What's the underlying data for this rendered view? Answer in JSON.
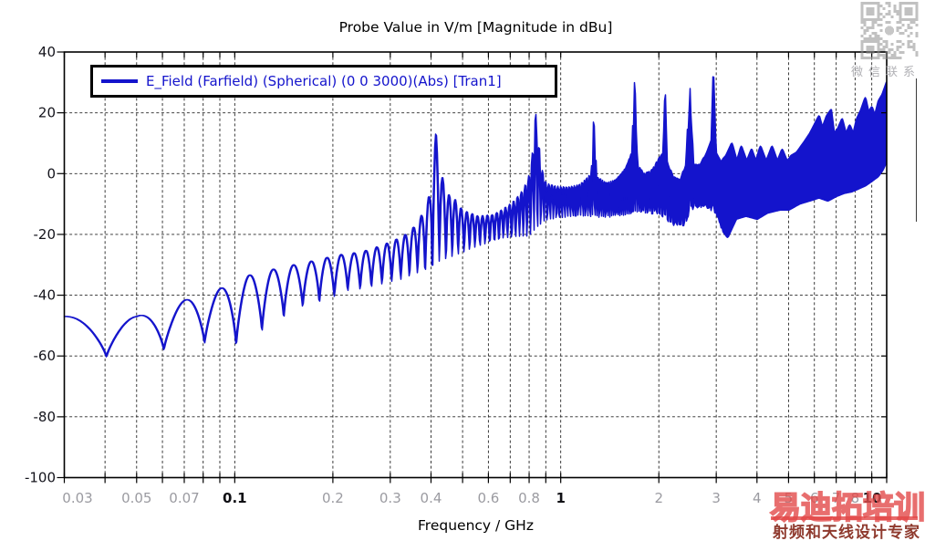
{
  "qr": {
    "caption": "微信联系"
  },
  "watermark": {
    "brand": "易迪拓培训",
    "tagline": "射频和天线设计专家",
    "brand_color": "#e24646",
    "tagline_color": "#8f3a2e"
  },
  "chart_data": {
    "type": "line",
    "title": "Probe Value in V/m [Magnitude in dBu]",
    "xlabel": "Frequency / GHz",
    "ylabel": "",
    "grid": "dashed",
    "legend_position": "top-left-inside",
    "x_axis": {
      "scale": "log",
      "min": 0.03,
      "max": 10,
      "ticks": [
        0.03,
        0.04,
        0.05,
        0.06,
        0.07,
        0.08,
        0.09,
        0.1,
        0.2,
        0.3,
        0.4,
        0.5,
        0.6,
        0.7,
        0.8,
        0.9,
        1,
        2,
        3,
        4,
        5,
        6,
        7,
        8,
        9,
        10
      ],
      "gridlines": [
        0.04,
        0.05,
        0.06,
        0.07,
        0.08,
        0.09,
        0.1,
        0.2,
        0.3,
        0.4,
        0.5,
        0.6,
        0.7,
        0.8,
        0.9,
        1,
        2,
        3,
        4,
        5,
        6,
        7,
        8,
        9
      ],
      "tick_labels": [
        {
          "f": 0.03,
          "label": "0.03",
          "strong": false
        },
        {
          "f": 0.05,
          "label": "0.05",
          "strong": false
        },
        {
          "f": 0.07,
          "label": "0.07",
          "strong": false
        },
        {
          "f": 0.1,
          "label": "0.1",
          "strong": true
        },
        {
          "f": 0.2,
          "label": "0.2",
          "strong": false
        },
        {
          "f": 0.3,
          "label": "0.3",
          "strong": false
        },
        {
          "f": 0.4,
          "label": "0.4",
          "strong": false
        },
        {
          "f": 0.6,
          "label": "0.6",
          "strong": false
        },
        {
          "f": 0.8,
          "label": "0.8",
          "strong": false
        },
        {
          "f": 1,
          "label": "1",
          "strong": true
        },
        {
          "f": 2,
          "label": "2",
          "strong": false
        },
        {
          "f": 3,
          "label": "3",
          "strong": false
        },
        {
          "f": 4,
          "label": "4",
          "strong": false
        },
        {
          "f": 5,
          "label": "5",
          "strong": false
        },
        {
          "f": 6,
          "label": "6",
          "strong": false
        },
        {
          "f": 7,
          "label": "7",
          "strong": false
        },
        {
          "f": 8,
          "label": "8",
          "strong": false
        },
        {
          "f": 10,
          "label": "10",
          "strong": true
        }
      ]
    },
    "y_axis": {
      "min": -100,
      "max": 40,
      "step": 20,
      "gridlines": [
        20,
        0,
        -20,
        -40,
        -60,
        -80
      ],
      "tick_labels": [
        {
          "v": 40,
          "label": "40"
        },
        {
          "v": 20,
          "label": "20"
        },
        {
          "v": 0,
          "label": "0"
        },
        {
          "v": -20,
          "label": "-20"
        },
        {
          "v": -40,
          "label": "-40"
        },
        {
          "v": -60,
          "label": "-60"
        },
        {
          "v": -80,
          "label": "-80"
        },
        {
          "v": -100,
          "label": "-100"
        }
      ]
    },
    "series": [
      {
        "name": "E_Field (Farfield) (Spherical) (0 0 3000)(Abs) [Tran1]",
        "color": "#1414cc",
        "interference_null_spacing_ghz": 0.0202,
        "envelope_upper": [
          [
            0.03,
            -47
          ],
          [
            0.05,
            -47
          ],
          [
            0.071,
            -41.5
          ],
          [
            0.095,
            -37
          ],
          [
            0.11,
            -33.5
          ],
          [
            0.131,
            -31.5
          ],
          [
            0.152,
            -30
          ],
          [
            0.172,
            -28.8
          ],
          [
            0.194,
            -27.5
          ],
          [
            0.215,
            -26.5
          ],
          [
            0.236,
            -26
          ],
          [
            0.26,
            -25
          ],
          [
            0.3,
            -22.5
          ],
          [
            0.33,
            -20.5
          ],
          [
            0.355,
            -17.5
          ],
          [
            0.378,
            -13
          ],
          [
            0.396,
            -7
          ],
          [
            0.414,
            13
          ],
          [
            0.428,
            1
          ],
          [
            0.447,
            -6.5
          ],
          [
            0.47,
            -8
          ],
          [
            0.5,
            -12
          ],
          [
            0.56,
            -14
          ],
          [
            0.62,
            -13.5
          ],
          [
            0.67,
            -11.5
          ],
          [
            0.72,
            -9
          ],
          [
            0.77,
            -5
          ],
          [
            0.81,
            1
          ],
          [
            0.8383,
            19.5
          ],
          [
            0.868,
            3
          ],
          [
            0.9,
            -3
          ],
          [
            0.95,
            -4
          ],
          [
            1.05,
            -4.5
          ],
          [
            1.15,
            -3.5
          ],
          [
            1.24,
            0
          ],
          [
            1.2625,
            17
          ],
          [
            1.29,
            -1
          ],
          [
            1.38,
            -3
          ],
          [
            1.48,
            -2
          ],
          [
            1.58,
            2
          ],
          [
            1.655,
            7
          ],
          [
            1.6867,
            30
          ],
          [
            1.72,
            3
          ],
          [
            1.8,
            0
          ],
          [
            1.9,
            1
          ],
          [
            2.0,
            5
          ],
          [
            2.06,
            7
          ],
          [
            2.0907,
            26
          ],
          [
            2.13,
            3
          ],
          [
            2.22,
            -1
          ],
          [
            2.32,
            -2
          ],
          [
            2.42,
            3
          ],
          [
            2.4947,
            28
          ],
          [
            2.55,
            3
          ],
          [
            2.68,
            3
          ],
          [
            2.8,
            7
          ],
          [
            2.9,
            11
          ],
          [
            2.9391,
            32
          ],
          [
            2.99,
            7
          ],
          [
            3.1,
            4
          ],
          [
            3.22,
            6
          ],
          [
            3.35,
            10
          ],
          [
            3.47,
            4
          ],
          [
            3.58,
            9
          ],
          [
            3.72,
            4
          ],
          [
            3.85,
            8
          ],
          [
            3.97,
            4
          ],
          [
            4.1,
            9
          ],
          [
            4.27,
            4
          ],
          [
            4.45,
            9
          ],
          [
            4.62,
            4
          ],
          [
            4.78,
            8
          ],
          [
            4.95,
            4
          ],
          [
            5.1,
            6
          ],
          [
            5.3,
            7
          ],
          [
            5.55,
            10
          ],
          [
            5.8,
            13
          ],
          [
            6.0,
            16
          ],
          [
            6.2,
            19
          ],
          [
            6.35,
            15
          ],
          [
            6.55,
            19
          ],
          [
            6.75,
            21
          ],
          [
            6.9,
            13
          ],
          [
            7.1,
            15
          ],
          [
            7.3,
            18
          ],
          [
            7.5,
            13
          ],
          [
            7.7,
            16
          ],
          [
            7.9,
            13
          ],
          [
            8.1,
            18
          ],
          [
            8.35,
            21
          ],
          [
            8.6,
            25
          ],
          [
            8.8,
            20
          ],
          [
            9.0,
            22
          ],
          [
            9.2,
            19
          ],
          [
            9.45,
            24
          ],
          [
            9.7,
            26
          ],
          [
            10,
            30
          ]
        ],
        "envelope_lower": [
          [
            0.03,
            -62
          ],
          [
            0.06,
            -58
          ],
          [
            0.083,
            -55.5
          ],
          [
            0.101,
            -56
          ],
          [
            0.121,
            -51.5
          ],
          [
            0.141,
            -47
          ],
          [
            0.162,
            -43.5
          ],
          [
            0.182,
            -42
          ],
          [
            0.202,
            -40.5
          ],
          [
            0.222,
            -38.5
          ],
          [
            0.242,
            -38
          ],
          [
            0.28,
            -36.5
          ],
          [
            0.32,
            -35
          ],
          [
            0.36,
            -33
          ],
          [
            0.4,
            -31
          ],
          [
            0.44,
            -28.5
          ],
          [
            0.5,
            -26
          ],
          [
            0.56,
            -24
          ],
          [
            0.62,
            -22
          ],
          [
            0.7,
            -21
          ],
          [
            0.8,
            -21
          ],
          [
            0.9,
            -15.5
          ],
          [
            1.0,
            -14.5
          ],
          [
            1.15,
            -14
          ],
          [
            1.35,
            -14.5
          ],
          [
            1.6,
            -14
          ],
          [
            1.8,
            -13
          ],
          [
            2.0,
            -13.5
          ],
          [
            2.2,
            -17
          ],
          [
            2.38,
            -17.5
          ],
          [
            2.55,
            -12
          ],
          [
            2.75,
            -11
          ],
          [
            2.95,
            -13
          ],
          [
            3.1,
            -18
          ],
          [
            3.25,
            -21
          ],
          [
            3.45,
            -15
          ],
          [
            3.7,
            -14
          ],
          [
            4.0,
            -15
          ],
          [
            4.3,
            -13
          ],
          [
            4.7,
            -12
          ],
          [
            5.0,
            -12
          ],
          [
            5.4,
            -10
          ],
          [
            5.8,
            -9
          ],
          [
            6.2,
            -8
          ],
          [
            6.6,
            -9
          ],
          [
            7.0,
            -7.5
          ],
          [
            7.4,
            -6.5
          ],
          [
            7.8,
            -6
          ],
          [
            8.2,
            -5
          ],
          [
            8.6,
            -4
          ],
          [
            9.0,
            -2.5
          ],
          [
            9.4,
            -1
          ],
          [
            9.7,
            1
          ],
          [
            10,
            4
          ]
        ]
      }
    ]
  }
}
